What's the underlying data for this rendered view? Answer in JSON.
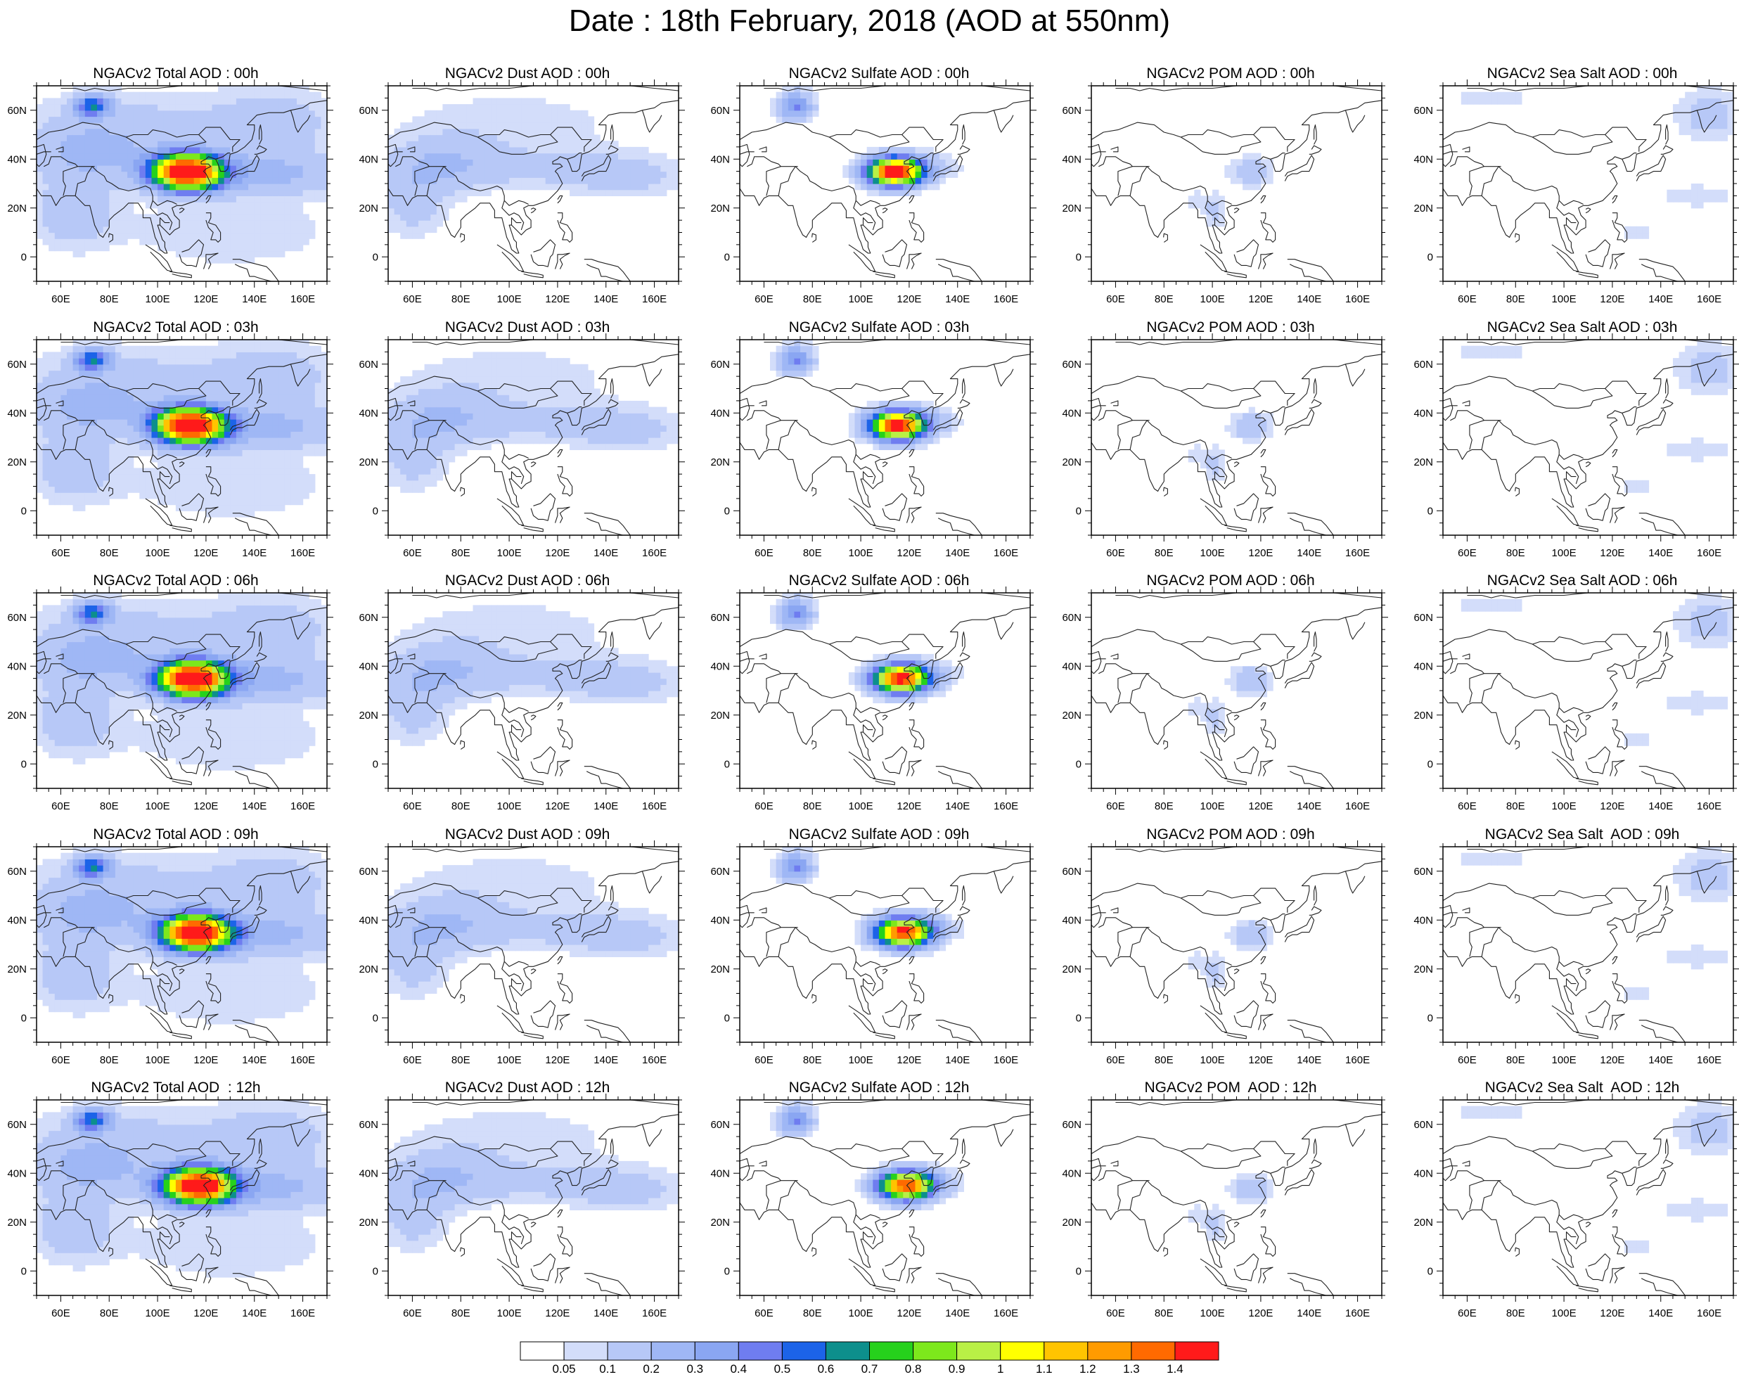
{
  "title": "Date : 18th February, 2018 (AOD at 550nm)",
  "columns": [
    {
      "key": "total",
      "label": "Total AOD"
    },
    {
      "key": "dust",
      "label": "Dust AOD"
    },
    {
      "key": "sulfate",
      "label": "Sulfate AOD"
    },
    {
      "key": "pom",
      "label": "POM AOD"
    },
    {
      "key": "seasalt",
      "label": "Sea Salt AOD"
    }
  ],
  "panel_titles": [
    [
      "NGACv2 Total AOD : 00h",
      "NGACv2 Dust AOD : 00h",
      "NGACv2 Sulfate AOD : 00h",
      "NGACv2 POM AOD : 00h",
      "NGACv2 Sea Salt AOD : 00h"
    ],
    [
      "NGACv2 Total AOD : 03h",
      "NGACv2 Dust AOD : 03h",
      "NGACv2 Sulfate AOD : 03h",
      "NGACv2 POM AOD : 03h",
      "NGACv2 Sea Salt AOD : 03h"
    ],
    [
      "NGACv2 Total AOD : 06h",
      "NGACv2 Dust AOD : 06h",
      "NGACv2 Sulfate AOD : 06h",
      "NGACv2 POM AOD : 06h",
      "NGACv2 Sea Salt AOD : 06h"
    ],
    [
      "NGACv2 Total AOD : 09h",
      "NGACv2 Dust AOD : 09h",
      "NGACv2 Sulfate AOD : 09h",
      "NGACv2 POM AOD : 09h",
      "NGACv2 Sea Salt  AOD : 09h"
    ],
    [
      "NGACv2 Total AOD  : 12h",
      "NGACv2 Dust AOD : 12h",
      "NGACv2 Sulfate AOD : 12h",
      "NGACv2 POM  AOD : 12h",
      "NGACv2 Sea Salt  AOD : 12h"
    ]
  ],
  "map": {
    "lon_range": [
      50,
      170
    ],
    "lat_range": [
      -10,
      70
    ],
    "lon_ticks": [
      "60E",
      "80E",
      "100E",
      "120E",
      "140E",
      "160E"
    ],
    "lon_tick_values": [
      60,
      80,
      100,
      120,
      140,
      160
    ],
    "lat_ticks": [
      "60N",
      "40N",
      "20N",
      "0"
    ],
    "lat_tick_values": [
      60,
      40,
      20,
      0
    ]
  },
  "colorbar": {
    "levels": [
      "0.05",
      "0.1",
      "0.2",
      "0.3",
      "0.4",
      "0.5",
      "0.6",
      "0.7",
      "0.8",
      "0.9",
      "1",
      "1.1",
      "1.2",
      "1.3",
      "1.4"
    ],
    "colors": [
      "#ffffff",
      "#d3ddfa",
      "#b7c8f7",
      "#9fb7f5",
      "#8aa6f2",
      "#6f7df0",
      "#1c63e8",
      "#0d8f8c",
      "#26d11c",
      "#7de81c",
      "#b9f046",
      "#ffff00",
      "#ffc400",
      "#ff9b00",
      "#ff6a00",
      "#ff1a1a"
    ]
  },
  "time_steps": [
    "00h",
    "03h",
    "06h",
    "09h",
    "12h"
  ]
}
